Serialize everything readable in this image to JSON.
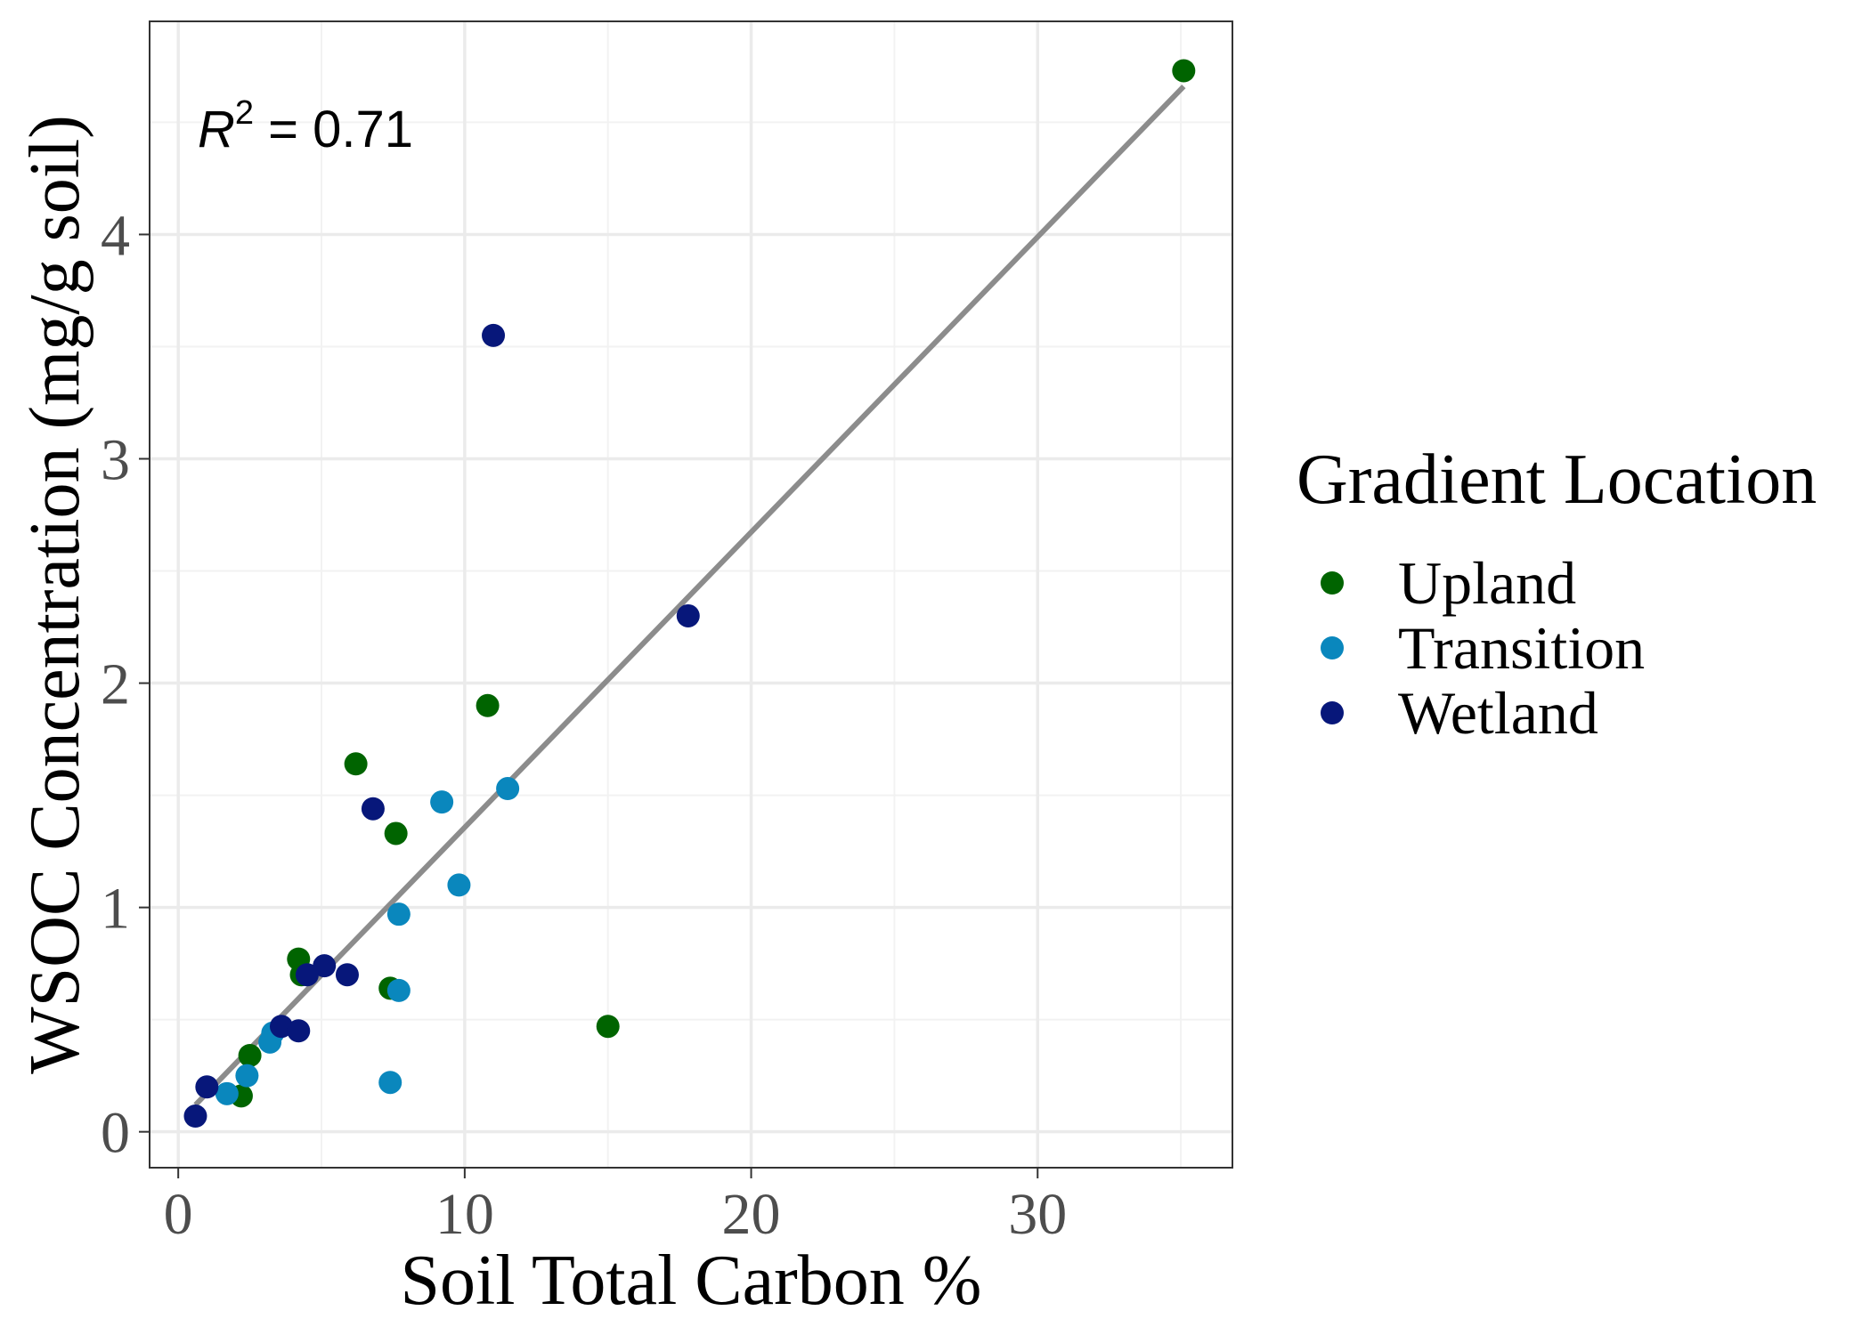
{
  "chart_data": {
    "type": "scatter",
    "xlabel": "Soil Total Carbon %",
    "ylabel": "WSOC Concentration (mg/g soil)",
    "xlim": [
      -1,
      36.8
    ],
    "ylim": [
      -0.16,
      4.95
    ],
    "x_ticks": [
      0,
      10,
      20,
      30
    ],
    "x_tick_labels": [
      "0",
      "10",
      "20",
      "30"
    ],
    "y_ticks": [
      0,
      1,
      2,
      3,
      4
    ],
    "y_tick_labels": [
      "0",
      "1",
      "2",
      "3",
      "4"
    ],
    "grid": true,
    "legend": {
      "title": "Gradient Location",
      "placement": "right"
    },
    "annotation": {
      "r_label": "R",
      "r_exp": "2",
      "r_value": " = 0.71"
    },
    "fit_line": {
      "color": "#8c8c8c",
      "x": [
        0.6,
        35.1
      ],
      "y": [
        0.12,
        4.66
      ]
    },
    "series": [
      {
        "name": "Upland",
        "color": "#006400",
        "points": [
          [
            35.1,
            4.73
          ],
          [
            10.8,
            1.9
          ],
          [
            6.2,
            1.64
          ],
          [
            7.6,
            1.33
          ],
          [
            4.2,
            0.77
          ],
          [
            4.3,
            0.7
          ],
          [
            7.4,
            0.64
          ],
          [
            15.0,
            0.47
          ],
          [
            2.5,
            0.34
          ],
          [
            2.2,
            0.16
          ]
        ]
      },
      {
        "name": "Transition",
        "color": "#0a87bd",
        "points": [
          [
            11.5,
            1.53
          ],
          [
            9.2,
            1.47
          ],
          [
            9.8,
            1.1
          ],
          [
            7.7,
            0.97
          ],
          [
            7.7,
            0.63
          ],
          [
            3.3,
            0.44
          ],
          [
            3.2,
            0.4
          ],
          [
            2.4,
            0.25
          ],
          [
            1.7,
            0.17
          ],
          [
            7.4,
            0.22
          ]
        ]
      },
      {
        "name": "Wetland",
        "color": "#07177a",
        "points": [
          [
            11.0,
            3.55
          ],
          [
            17.8,
            2.3
          ],
          [
            6.8,
            1.44
          ],
          [
            5.1,
            0.74
          ],
          [
            4.5,
            0.7
          ],
          [
            5.9,
            0.7
          ],
          [
            3.6,
            0.47
          ],
          [
            4.2,
            0.45
          ],
          [
            1.0,
            0.2
          ],
          [
            0.6,
            0.07
          ]
        ]
      }
    ]
  }
}
